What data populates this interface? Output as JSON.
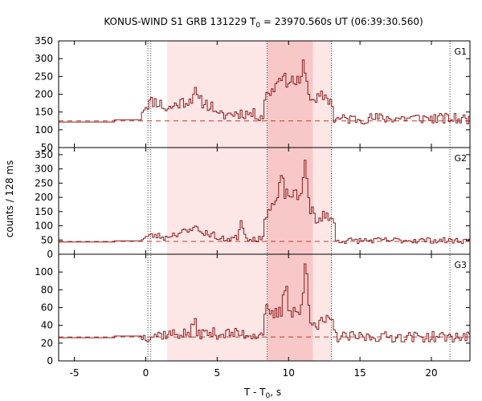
{
  "chart_data": {
    "type": "line",
    "title_parts": [
      "KONUS-WIND S1 GRB 131229 T",
      "0",
      " = 23970.560s UT (06:39:30.560)"
    ],
    "xlabel_parts": [
      "T - T",
      "0",
      ", s"
    ],
    "ylabel": "counts / 128 ms",
    "xlim": [
      -6.1,
      22.7
    ],
    "xticks": [
      -5,
      0,
      5,
      10,
      15,
      20
    ],
    "shaded_regions": [
      {
        "from": 1.5,
        "to": 13.0,
        "color": "#fde6e6"
      },
      {
        "from": 8.5,
        "to": 11.7,
        "color": "#f8c8c8"
      }
    ],
    "vertical_dotted_lines": [
      0.15,
      0.35,
      8.5,
      13.0,
      21.3
    ],
    "line_color": "#8b1a1a",
    "panels": [
      {
        "name": "G1",
        "ylim": [
          50,
          350
        ],
        "yticks": [
          50,
          100,
          150,
          200,
          250,
          300,
          350
        ],
        "background": 125,
        "pre_level": 122,
        "step_level": 128,
        "pulses": [
          {
            "start": -0.3,
            "end": 1.5,
            "amp": 55
          },
          {
            "start": 1.5,
            "end": 5.0,
            "amp": 58
          },
          {
            "start": 5.0,
            "end": 8.3,
            "amp": 22
          },
          {
            "start": 8.3,
            "end": 11.7,
            "amp": 115
          },
          {
            "start": 11.7,
            "end": 13.2,
            "amp": 70
          },
          {
            "start": 13.2,
            "end": 22.7,
            "amp": 8
          }
        ],
        "spikes": [
          {
            "t": 11.1,
            "amp": 75
          },
          {
            "t": 9.4,
            "amp": 30
          },
          {
            "t": 3.4,
            "amp": 25
          }
        ],
        "noise": 15,
        "seed": 11
      },
      {
        "name": "G2",
        "ylim": [
          0,
          375
        ],
        "yticks": [
          0,
          50,
          100,
          150,
          200,
          250,
          300,
          350
        ],
        "background": 45,
        "pre_level": 43,
        "step_level": 47,
        "pulses": [
          {
            "start": -0.3,
            "end": 1.5,
            "amp": 20
          },
          {
            "start": 1.5,
            "end": 5.0,
            "amp": 35
          },
          {
            "start": 5.0,
            "end": 8.3,
            "amp": 12
          },
          {
            "start": 8.3,
            "end": 11.9,
            "amp": 165
          },
          {
            "start": 11.9,
            "end": 13.3,
            "amp": 95
          },
          {
            "start": 13.3,
            "end": 22.7,
            "amp": 4
          }
        ],
        "spikes": [
          {
            "t": 11.15,
            "amp": 170
          },
          {
            "t": 9.5,
            "amp": 70
          },
          {
            "t": 6.7,
            "amp": 70
          },
          {
            "t": 3.4,
            "amp": 30
          }
        ],
        "noise": 10,
        "seed": 23
      },
      {
        "name": "G3",
        "ylim": [
          0,
          120
        ],
        "yticks": [
          0,
          20,
          40,
          60,
          80,
          100
        ],
        "background": 27,
        "pre_level": 26,
        "step_level": 28,
        "pulses": [
          {
            "start": 0.2,
            "end": 8.3,
            "amp": 4
          },
          {
            "start": 8.3,
            "end": 12.0,
            "amp": 30
          },
          {
            "start": 12.0,
            "end": 13.3,
            "amp": 18
          }
        ],
        "spikes": [
          {
            "t": 11.2,
            "amp": 58
          },
          {
            "t": 9.8,
            "amp": 32
          },
          {
            "t": 8.4,
            "amp": 14
          },
          {
            "t": 3.4,
            "amp": 12
          }
        ],
        "noise": 6,
        "seed": 37
      }
    ]
  }
}
